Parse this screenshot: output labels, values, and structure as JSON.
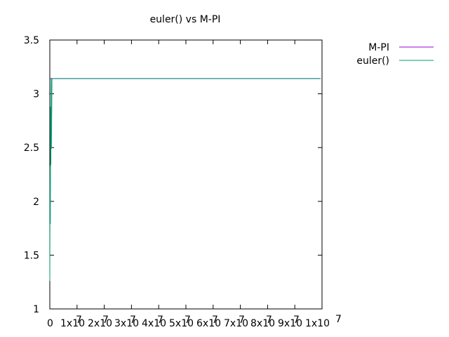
{
  "chart_data": {
    "type": "line",
    "title": "euler() vs M-PI",
    "xlabel": "",
    "ylabel": "",
    "xlim": [
      0,
      100000000
    ],
    "ylim": [
      1,
      3.5
    ],
    "grid": false,
    "legend_position": "outside top-right",
    "x_ticks": [
      {
        "value": 0,
        "label": "0"
      },
      {
        "value": 10000000,
        "label": "1x10"
      },
      {
        "value": 20000000,
        "label": "2x10"
      },
      {
        "value": 30000000,
        "label": "3x10"
      },
      {
        "value": 40000000,
        "label": "4x10"
      },
      {
        "value": 50000000,
        "label": "5x10"
      },
      {
        "value": 60000000,
        "label": "6x10"
      },
      {
        "value": 70000000,
        "label": "7x10"
      },
      {
        "value": 80000000,
        "label": "8x10"
      },
      {
        "value": 90000000,
        "label": "9x10"
      },
      {
        "value": 100000000,
        "label": "1x10"
      }
    ],
    "x_tick_exponents": [
      "7",
      "7",
      "7",
      "7",
      "7",
      "7",
      "7",
      "7",
      "7",
      "7"
    ],
    "y_ticks": [
      {
        "value": 1,
        "label": "1"
      },
      {
        "value": 1.5,
        "label": "1.5"
      },
      {
        "value": 2,
        "label": "2"
      },
      {
        "value": 2.5,
        "label": "2.5"
      },
      {
        "value": 3,
        "label": "3"
      },
      {
        "value": 3.5,
        "label": "3.5"
      }
    ],
    "series": [
      {
        "name": "M-PI",
        "color": "#9400d3",
        "x": [
          0,
          99500000
        ],
        "y": [
          3.14159,
          3.14159
        ]
      },
      {
        "name": "euler()",
        "color": "#009e73",
        "x": [
          0,
          100000,
          200000,
          300000,
          400000,
          500000,
          600000,
          800000,
          1000000,
          99500000
        ],
        "y": [
          1.26,
          2.33,
          1.79,
          2.88,
          2.34,
          3.14,
          2.49,
          3.14159,
          3.14159,
          3.14159
        ]
      }
    ]
  }
}
